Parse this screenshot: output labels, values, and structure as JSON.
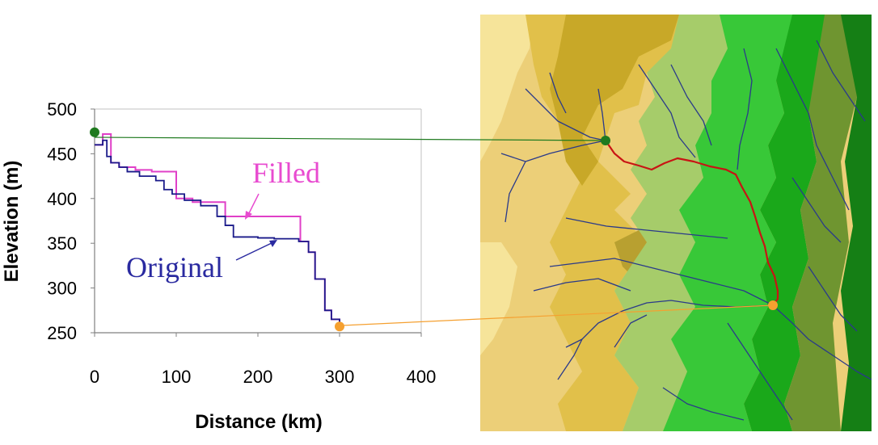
{
  "colors": {
    "filled": "#e040c8",
    "original": "#1a1a8a",
    "start_marker": "#1f7a1f",
    "end_marker": "#f5a030",
    "river": "#c81414",
    "stream": "#2a3a8a",
    "annotation_filled": "#e84bd0",
    "annotation_original": "#2a2aa0",
    "terrain": [
      "#f6e49a",
      "#eccf78",
      "#e1c04a",
      "#d5b21c",
      "#c8a828",
      "#b8a030",
      "#a6cc6a",
      "#38c838",
      "#1aa81a",
      "#6f9530",
      "#157f15"
    ]
  },
  "chart_data": {
    "type": "line",
    "xlabel": "Distance (km)",
    "ylabel": "Elevation (m)",
    "xlim": [
      0,
      400
    ],
    "ylim": [
      250,
      500
    ],
    "x_ticks": [
      0,
      100,
      200,
      300,
      400
    ],
    "y_ticks": [
      250,
      300,
      350,
      400,
      450,
      500
    ],
    "grid": false,
    "series": [
      {
        "name": "Filled",
        "color": "#e040c8",
        "step": true,
        "x": [
          0,
          10,
          20,
          30,
          50,
          70,
          85,
          100,
          120,
          140,
          160,
          200,
          240,
          252,
          262,
          270,
          282,
          290,
          300
        ],
        "y": [
          460,
          472,
          440,
          435,
          432,
          430,
          430,
          400,
          396,
          396,
          380,
          380,
          380,
          352,
          340,
          310,
          275,
          265,
          262
        ]
      },
      {
        "name": "Original",
        "color": "#1a1a8a",
        "step": true,
        "x": [
          0,
          10,
          15,
          20,
          30,
          40,
          55,
          75,
          85,
          95,
          110,
          130,
          150,
          160,
          170,
          185,
          200,
          220,
          240,
          250,
          262,
          270,
          282,
          290,
          300
        ],
        "y": [
          460,
          465,
          447,
          440,
          435,
          430,
          425,
          420,
          410,
          405,
          398,
          392,
          380,
          370,
          357,
          357,
          356,
          355,
          355,
          352,
          340,
          310,
          275,
          265,
          262
        ]
      }
    ],
    "markers": [
      {
        "x": 0,
        "y": 474
      },
      {
        "x": 300,
        "y": 257
      }
    ],
    "annotations": [
      {
        "text": "Filled"
      },
      {
        "text": "Original"
      }
    ]
  }
}
